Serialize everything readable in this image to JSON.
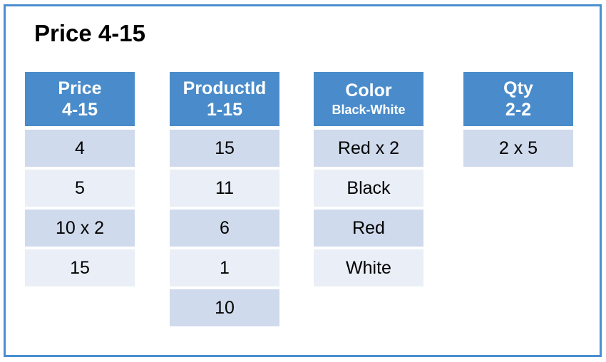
{
  "title": "Price 4-15",
  "columns": [
    {
      "name": "Price",
      "range": "4-15",
      "values": [
        "4",
        "5",
        "10 x 2",
        "15"
      ]
    },
    {
      "name": "ProductId",
      "range": "1-15",
      "values": [
        "15",
        "11",
        "6",
        "1",
        "10"
      ]
    },
    {
      "name": "Color",
      "range": "Black-White",
      "values": [
        "Red x 2",
        "Black",
        "Red",
        "White"
      ]
    },
    {
      "name": "Qty",
      "range": "2-2",
      "values": [
        "2 x 5"
      ]
    }
  ],
  "colors": {
    "border": "#4a8fd0",
    "header": "#4a8ccb",
    "row_dark": "#cfdaec",
    "row_light": "#e9eef7"
  }
}
